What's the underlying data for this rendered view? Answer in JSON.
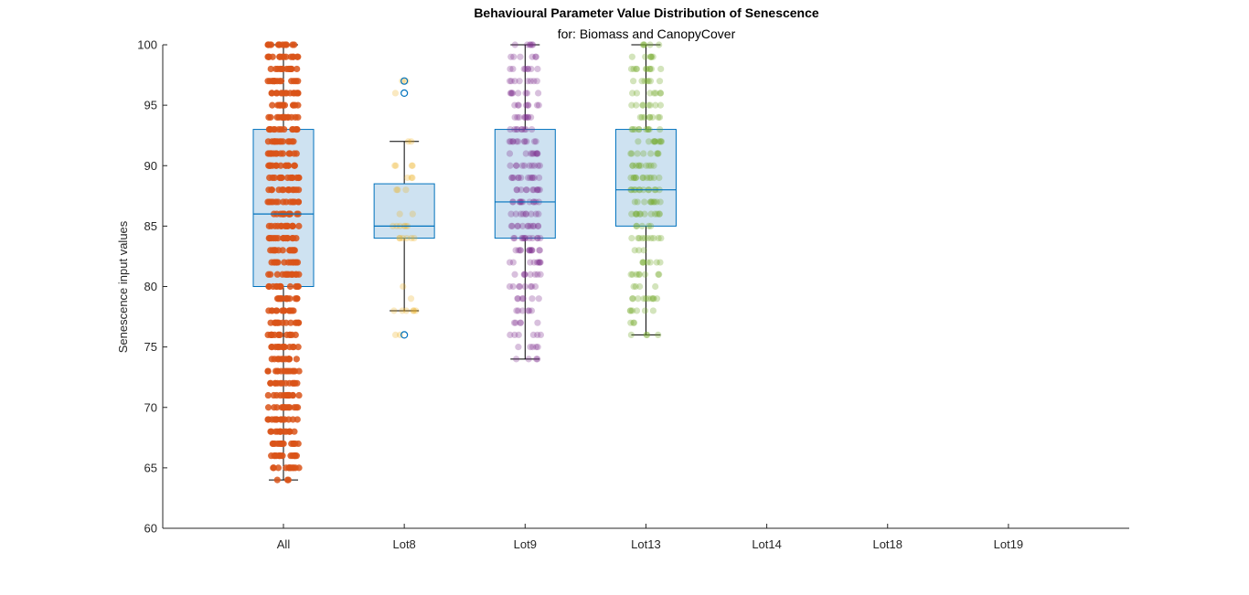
{
  "chart_data": {
    "type": "boxplot",
    "title": "Behavioural Parameter Value Distribution of Senescence",
    "subtitle": "for: Biomass and CanopyCover",
    "xlabel": "",
    "ylabel": "Senescence input values",
    "categories": [
      "All",
      "Lot8",
      "Lot9",
      "Lot13",
      "Lot14",
      "Lot18",
      "Lot19"
    ],
    "ylim": [
      60,
      100
    ],
    "yticks": [
      60,
      65,
      70,
      75,
      80,
      85,
      90,
      95,
      100
    ],
    "grid": false,
    "box_color": "#0072BD",
    "box_fill": "#C6DDEF",
    "whisker_color": "#000000",
    "boxes": [
      {
        "category": "All",
        "q1": 80,
        "median": 86,
        "q3": 93,
        "whisker_low": 64,
        "whisker_high": 100,
        "outliers": []
      },
      {
        "category": "Lot8",
        "q1": 84,
        "median": 85,
        "q3": 88.5,
        "whisker_low": 78,
        "whisker_high": 92,
        "outliers": [
          76,
          96,
          97
        ]
      },
      {
        "category": "Lot9",
        "q1": 84,
        "median": 87,
        "q3": 93,
        "whisker_low": 74,
        "whisker_high": 100,
        "outliers": []
      },
      {
        "category": "Lot13",
        "q1": 85,
        "median": 88,
        "q3": 93,
        "whisker_low": 76,
        "whisker_high": 100,
        "outliers": []
      }
    ],
    "scatter": [
      {
        "category": "All",
        "color": "#D95319",
        "alpha": 0.85,
        "spread": 0.13,
        "values": [
          64,
          65,
          66,
          67,
          68,
          69,
          70,
          71,
          72,
          73,
          74,
          75,
          76,
          77,
          78,
          79,
          80,
          81,
          82,
          83,
          84,
          85,
          86,
          87,
          88,
          89,
          90,
          91,
          92,
          93,
          94,
          95,
          96,
          97,
          98,
          99,
          100
        ],
        "counts": [
          3,
          12,
          14,
          14,
          14,
          14,
          14,
          14,
          14,
          14,
          14,
          14,
          14,
          14,
          14,
          14,
          14,
          14,
          14,
          14,
          14,
          14,
          14,
          14,
          14,
          14,
          14,
          14,
          14,
          14,
          14,
          14,
          14,
          14,
          14,
          14,
          14
        ]
      },
      {
        "category": "Lot8",
        "color": "#EDB120",
        "alpha": 0.28,
        "spread": 0.1,
        "values": [
          76,
          78,
          79,
          80,
          84,
          85,
          86,
          88,
          89,
          90,
          92,
          96,
          97
        ],
        "counts": [
          2,
          6,
          1,
          1,
          6,
          6,
          2,
          3,
          3,
          4,
          2,
          1,
          2
        ]
      },
      {
        "category": "Lot9",
        "color": "#7E2F8E",
        "alpha": 0.3,
        "spread": 0.13,
        "values": [
          74,
          75,
          76,
          77,
          78,
          79,
          80,
          81,
          82,
          83,
          84,
          85,
          86,
          87,
          88,
          89,
          90,
          91,
          92,
          93,
          94,
          95,
          96,
          97,
          98,
          99,
          100
        ],
        "counts": [
          4,
          5,
          6,
          5,
          6,
          6,
          8,
          8,
          9,
          12,
          12,
          12,
          9,
          12,
          11,
          12,
          10,
          9,
          11,
          9,
          9,
          8,
          8,
          8,
          8,
          6,
          6
        ]
      },
      {
        "category": "Lot13",
        "color": "#77AC30",
        "alpha": 0.32,
        "spread": 0.13,
        "values": [
          76,
          77,
          78,
          79,
          80,
          81,
          82,
          83,
          84,
          85,
          86,
          87,
          88,
          89,
          90,
          91,
          92,
          93,
          94,
          95,
          96,
          97,
          98,
          99,
          100
        ],
        "counts": [
          4,
          3,
          6,
          10,
          4,
          8,
          7,
          3,
          10,
          5,
          12,
          10,
          12,
          12,
          10,
          8,
          10,
          10,
          8,
          8,
          7,
          7,
          10,
          6,
          5
        ]
      }
    ]
  }
}
